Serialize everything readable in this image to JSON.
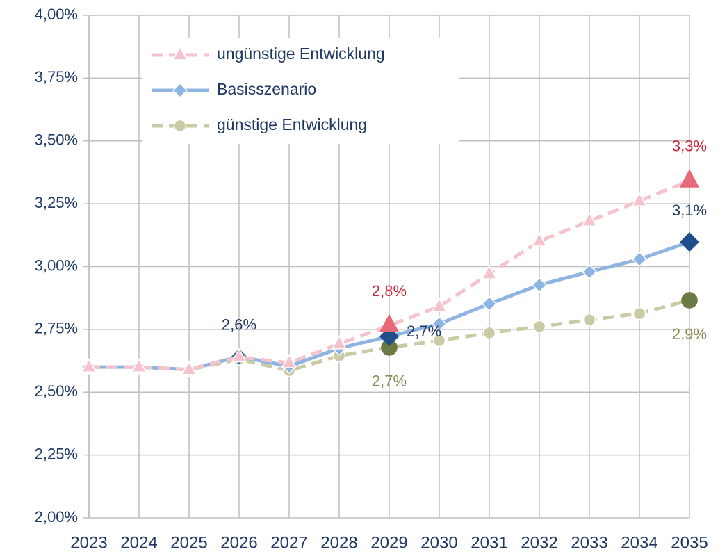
{
  "chart_data": {
    "type": "line",
    "categories": [
      "2023",
      "2024",
      "2025",
      "2026",
      "2027",
      "2028",
      "2029",
      "2030",
      "2031",
      "2032",
      "2033",
      "2034",
      "2035"
    ],
    "ylim": [
      2,
      4
    ],
    "yticks": [
      {
        "value": 2,
        "label": "2,00%"
      },
      {
        "value": 2.25,
        "label": "2,25%"
      },
      {
        "value": 2.5,
        "label": "2,50%"
      },
      {
        "value": 2.75,
        "label": "2,75%"
      },
      {
        "value": 3,
        "label": "3,00%"
      },
      {
        "value": 3.25,
        "label": "3,25%"
      },
      {
        "value": 3.5,
        "label": "3,50%"
      },
      {
        "value": 3.75,
        "label": "3,75%"
      },
      {
        "value": 4,
        "label": "4,00%"
      }
    ],
    "grid": true,
    "legend": "top-left",
    "series": [
      {
        "name": "ungünstige Entwicklung",
        "color": "#f5c3cb",
        "marker": "triangle",
        "dash": true,
        "highlight_color": "#e8697a",
        "label_color": "#c8283c",
        "values": [
          2.6,
          2.6,
          2.59,
          2.64,
          2.617,
          2.692,
          2.766,
          2.841,
          2.971,
          3.101,
          3.181,
          3.261,
          3.342
        ],
        "value_labels": [
          null,
          null,
          null,
          null,
          null,
          null,
          "2,8%",
          null,
          null,
          null,
          null,
          null,
          "3,3%"
        ]
      },
      {
        "name": "Basisszenario",
        "color": "#8db4e2",
        "marker": "diamond",
        "dash": false,
        "highlight_color": "#1f4e8c",
        "label_color": "#1f3864",
        "values": [
          2.6,
          2.6,
          2.59,
          2.642,
          2.603,
          2.675,
          2.722,
          2.772,
          2.852,
          2.927,
          2.979,
          3.029,
          3.098
        ],
        "value_labels": [
          null,
          null,
          null,
          "2,6%",
          null,
          null,
          "2,7%",
          null,
          null,
          null,
          null,
          null,
          "3,1%"
        ]
      },
      {
        "name": "günstige Entwicklung",
        "color": "#cacaa4",
        "marker": "circle",
        "dash": true,
        "highlight_color": "#6b7a45",
        "label_color": "#8a8a50",
        "values": [
          2.6,
          2.6,
          2.59,
          2.631,
          2.586,
          2.645,
          2.678,
          2.705,
          2.736,
          2.761,
          2.788,
          2.813,
          2.866
        ],
        "value_labels": [
          null,
          null,
          null,
          null,
          null,
          null,
          "2,7%",
          null,
          null,
          null,
          null,
          null,
          "2,9%"
        ]
      }
    ]
  }
}
